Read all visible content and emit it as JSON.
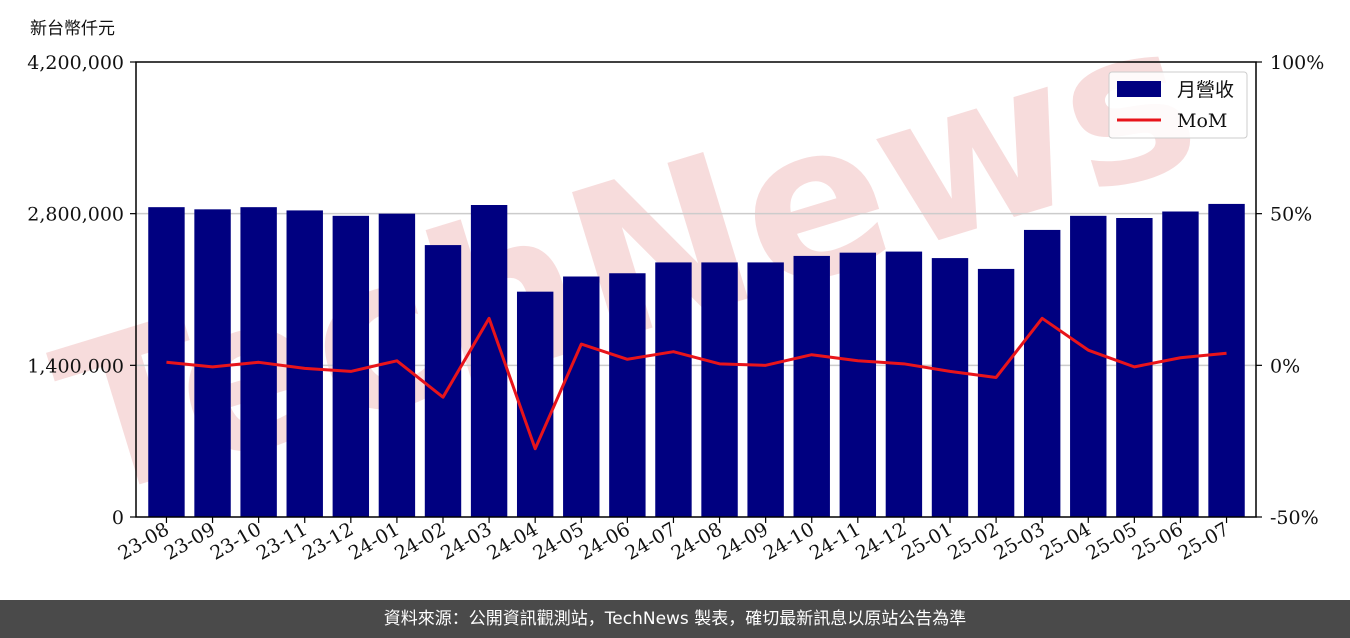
{
  "chart_data": {
    "type": "bar",
    "ylabel": "新台幣仟元",
    "categories": [
      "23-08",
      "23-09",
      "23-10",
      "23-11",
      "23-12",
      "24-01",
      "24-02",
      "24-03",
      "24-04",
      "24-05",
      "24-06",
      "24-07",
      "24-08",
      "24-09",
      "24-10",
      "24-11",
      "24-12",
      "25-01",
      "25-02",
      "25-03",
      "25-04",
      "25-05",
      "25-06",
      "25-07"
    ],
    "series": [
      {
        "name": "月營收",
        "type": "bar",
        "axis": "left",
        "color": "#000080",
        "values": [
          2860000,
          2840000,
          2860000,
          2830000,
          2780000,
          2800000,
          2510000,
          2880000,
          2080000,
          2220000,
          2250000,
          2350000,
          2350000,
          2350000,
          2410000,
          2440000,
          2450000,
          2390000,
          2290000,
          2650000,
          2780000,
          2760000,
          2820000,
          2890000
        ]
      },
      {
        "name": "MoM",
        "type": "line",
        "axis": "right",
        "color": "#e8141b",
        "values": [
          1.0,
          -0.5,
          1.0,
          -1.0,
          -2.0,
          1.5,
          -10.5,
          15.5,
          -27.5,
          7.0,
          2.0,
          4.5,
          0.5,
          0.0,
          3.5,
          1.5,
          0.5,
          -2.0,
          -4.0,
          15.5,
          5.0,
          -0.5,
          2.5,
          4.0
        ]
      }
    ],
    "y_left": {
      "lim": [
        0,
        4200000
      ],
      "ticks": [
        0,
        1400000,
        2800000,
        4200000
      ],
      "tick_labels": [
        "0",
        "1,400,000",
        "2,800,000",
        "4,200,000"
      ]
    },
    "y_right": {
      "lim": [
        -50,
        100
      ],
      "ticks": [
        -50,
        0,
        50,
        100
      ],
      "tick_labels": [
        "-50%",
        "0%",
        "50%",
        "100%"
      ]
    },
    "grid": "horizontal",
    "legend_position": "top-right"
  },
  "watermark": {
    "text": "TechNews",
    "color": "#f0c0c0"
  },
  "footer": {
    "text": "資料來源：公開資訊觀測站，TechNews 製表，確切最新訊息以原站公告為準"
  }
}
